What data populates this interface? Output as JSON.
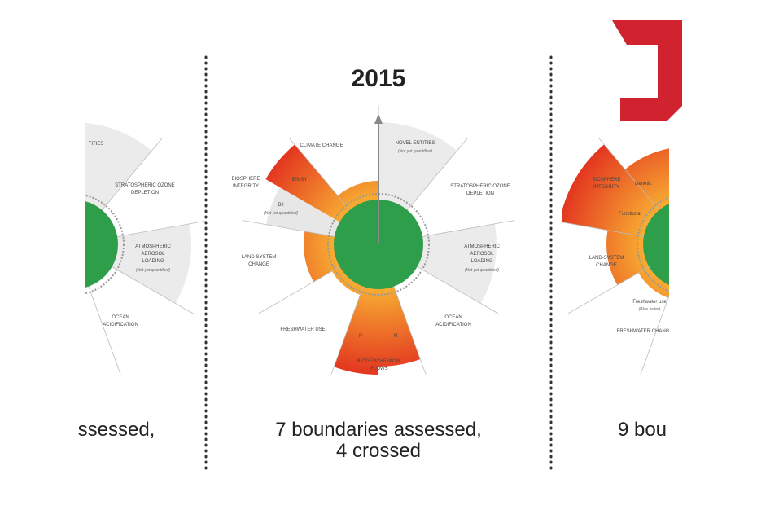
{
  "header": {
    "title": "2015"
  },
  "diagram": {
    "climate_change": "CLIMATE CHANGE",
    "novel_entities": [
      "NOVEL ENTITIES",
      "(Not yet quantified)"
    ],
    "ozone": [
      "STRATOSPHERIC OZONE",
      "DEPLETION"
    ],
    "aerosol": [
      "ATMOSPHERIC",
      "AEROSOL",
      "LOADING",
      "(Not yet quantified)"
    ],
    "ocean": [
      "OCEAN",
      "ACIDIFICATION"
    ],
    "biogeochemical": [
      "BIOGEOCHEMICAL",
      "FLOWS"
    ],
    "p": "P",
    "n": "N",
    "freshwater": "FRESHWATER USE",
    "land": [
      "LAND-SYSTEM",
      "CHANGE"
    ],
    "biosphere": [
      "BIOSPHERE",
      "INTEGRITY"
    ],
    "e_msy": "E/MSY",
    "bii": [
      "BII",
      "(Not yet quantified)"
    ]
  },
  "caption": {
    "lines": [
      "7 boundaries assessed,",
      "4 crossed"
    ]
  },
  "left_panel": {
    "entities": "TITIES",
    "ozone": [
      "STRATOSPHERIC OZONE",
      "DEPLETION"
    ],
    "aerosol": [
      "ATMOSPHERIC",
      "AEROSOL",
      "LOADING",
      "(Not yet quantified)"
    ],
    "ocean": [
      "OCEAN",
      "ACIDIFICATION"
    ],
    "caption": "ssessed,"
  },
  "right_panel": {
    "biosphere": [
      "BIOSPHERE",
      "INTEGRITY"
    ],
    "genetic": "Genetic",
    "functional": "Functional",
    "land": [
      "LAND-SYSTEM",
      "CHANGE"
    ],
    "freshwater": [
      "Freshwater use",
      "(Blue water)"
    ],
    "freshwater_change": "FRESHWATER CHANGE",
    "caption": "9 bou"
  }
}
